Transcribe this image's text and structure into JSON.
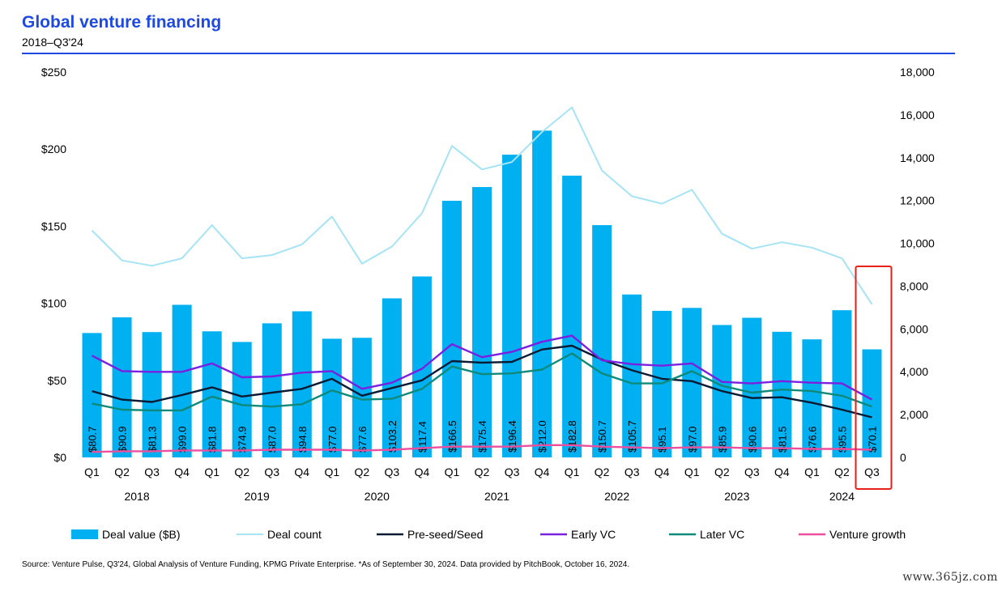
{
  "header": {
    "title": "Global venture financing",
    "subtitle": "2018–Q3'24"
  },
  "footer": {
    "source": "Source: Venture Pulse, Q3'24, Global Analysis of Venture Funding, KPMG Private Enterprise. *As of September 30, 2024. Data provided by PitchBook, October 16, 2024.",
    "watermark": "www.365jz.com"
  },
  "colors": {
    "deal_value": "#00b0f0",
    "deal_count": "#a6e4f5",
    "pre_seed": "#0a1b33",
    "early_vc": "#7b1fe0",
    "later_vc": "#0f8a7a",
    "venture_growth": "#ec4f9e",
    "highlight_box": "#e8221b"
  },
  "chart_data": {
    "type": "bar",
    "categories": [
      "Q1",
      "Q2",
      "Q3",
      "Q4",
      "Q1",
      "Q2",
      "Q3",
      "Q4",
      "Q1",
      "Q2",
      "Q3",
      "Q4",
      "Q1",
      "Q2",
      "Q3",
      "Q4",
      "Q1",
      "Q2",
      "Q3",
      "Q4",
      "Q1",
      "Q2",
      "Q3",
      "Q4",
      "Q1",
      "Q2",
      "Q3"
    ],
    "years": [
      {
        "label": "2018",
        "start": 0,
        "count": 4
      },
      {
        "label": "2019",
        "start": 4,
        "count": 4
      },
      {
        "label": "2020",
        "start": 8,
        "count": 4
      },
      {
        "label": "2021",
        "start": 12,
        "count": 4
      },
      {
        "label": "2022",
        "start": 16,
        "count": 4
      },
      {
        "label": "2023",
        "start": 20,
        "count": 4
      },
      {
        "label": "2024",
        "start": 24,
        "count": 3
      }
    ],
    "bar_series": {
      "name": "Deal value ($B)",
      "values": [
        80.7,
        90.9,
        81.3,
        99.0,
        81.8,
        74.9,
        87.0,
        94.8,
        77.0,
        77.6,
        103.2,
        117.4,
        166.5,
        175.4,
        196.4,
        212.0,
        182.8,
        150.7,
        105.7,
        95.1,
        97.0,
        85.9,
        90.6,
        81.5,
        76.6,
        95.5,
        70.1
      ],
      "labels": [
        "$80.7",
        "$90.9",
        "$81.3",
        "$99.0",
        "$81.8",
        "$74.9",
        "$87.0",
        "$94.8",
        "$77.0",
        "$77.6",
        "$103.2",
        "$117.4",
        "$166.5",
        "$175.4",
        "$196.4",
        "$212.0",
        "$182.8",
        "$150.7",
        "$105.7",
        "$95.1",
        "$97.0",
        "$85.9",
        "$90.6",
        "$81.5",
        "$76.6",
        "$95.5",
        "$70.1"
      ]
    },
    "line_series": [
      {
        "name": "Deal count",
        "axis": "right",
        "color": "#a6e4f5",
        "values": [
          10600,
          9200,
          8950,
          9300,
          10850,
          9300,
          9450,
          9950,
          11250,
          9050,
          9850,
          11400,
          14550,
          13450,
          13800,
          15200,
          16350,
          13400,
          12200,
          11850,
          12500,
          10450,
          9750,
          10050,
          9800,
          9300,
          7150
        ]
      },
      {
        "name": "Pre-seed/Seed",
        "axis": "left",
        "color": "#0a1b33",
        "values": [
          43,
          37.5,
          36,
          40.5,
          45.5,
          39.5,
          42,
          44.5,
          51,
          40,
          45,
          50,
          62.5,
          61.5,
          62,
          70,
          72.5,
          63.5,
          56.5,
          51,
          49.5,
          43,
          38.5,
          39,
          35.5,
          31,
          26
        ]
      },
      {
        "name": "Early VC",
        "axis": "left",
        "color": "#7b1fe0",
        "values": [
          66,
          56,
          55.5,
          55.5,
          61,
          52,
          52.5,
          55,
          56,
          44.5,
          48.5,
          57.5,
          73.5,
          65,
          68.5,
          75,
          79,
          63,
          60.5,
          59.5,
          61,
          49,
          48,
          49.5,
          48.5,
          48,
          37.5
        ]
      },
      {
        "name": "Later VC",
        "axis": "left",
        "color": "#0f8a7a",
        "values": [
          35,
          31,
          30.5,
          30.5,
          39.5,
          34,
          33,
          34.5,
          43.5,
          37.5,
          38,
          44.5,
          59,
          54,
          54.5,
          57,
          67.5,
          54.5,
          48,
          48,
          56,
          46.5,
          42,
          44,
          43,
          40,
          33
        ]
      },
      {
        "name": "Venture growth",
        "axis": "left",
        "color": "#ec4f9e",
        "values": [
          3.5,
          4,
          4,
          4.5,
          4.5,
          4.5,
          5,
          5,
          5,
          4.5,
          5,
          6,
          7,
          7,
          7,
          8,
          8,
          7,
          6.5,
          6,
          6.5,
          6.5,
          6,
          6,
          5.5,
          5.5,
          5
        ]
      }
    ],
    "left_axis": {
      "min": 0,
      "max": 250,
      "ticks": [
        0,
        50,
        100,
        150,
        200,
        250
      ],
      "tick_labels": [
        "$0",
        "$50",
        "$100",
        "$150",
        "$200",
        "$250"
      ]
    },
    "right_axis": {
      "min": 0,
      "max": 18000,
      "ticks": [
        0,
        2000,
        4000,
        6000,
        8000,
        10000,
        12000,
        14000,
        16000,
        18000
      ],
      "tick_labels": [
        "0",
        "2,000",
        "4,000",
        "6,000",
        "8,000",
        "10,000",
        "12,000",
        "14,000",
        "16,000",
        "18,000"
      ]
    },
    "grid": false,
    "legend_position": "bottom",
    "legend": [
      "Deal value ($B)",
      "Deal count",
      "Pre-seed/Seed",
      "Early VC",
      "Later VC",
      "Venture growth"
    ],
    "highlight": {
      "category_index": 26,
      "style": "red outline box"
    }
  }
}
